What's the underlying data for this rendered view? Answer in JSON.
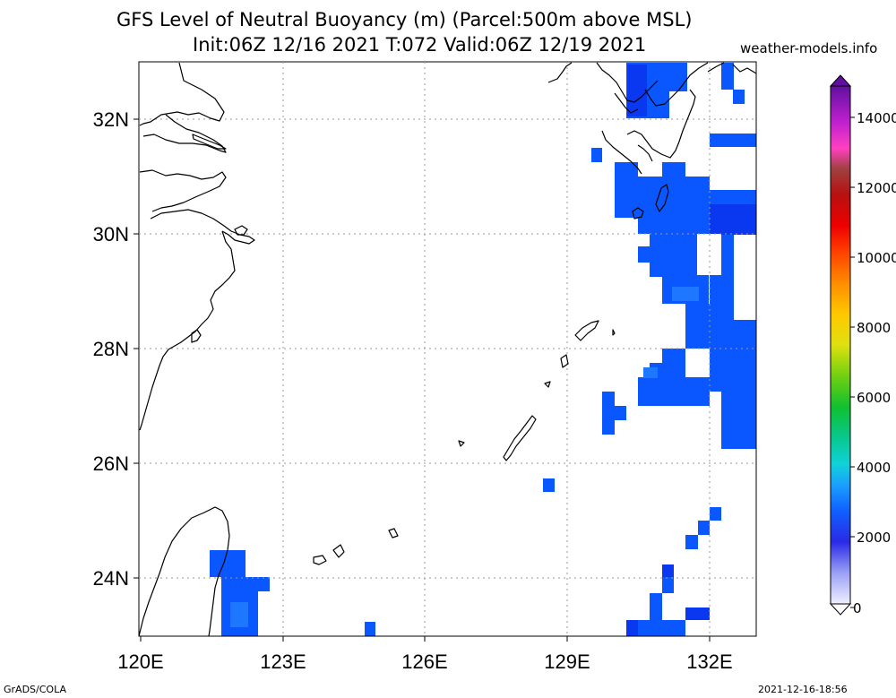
{
  "title_line1": "GFS Level of Neutral Buoyancy (m) (Parcel:500m above MSL)",
  "title_line2": "Init:06Z 12/16 2021 T:072 Valid:06Z 12/19 2021",
  "website": "weather-models.info",
  "footer_left": "GrADS/COLA",
  "footer_right": "2021-12-16-18:56",
  "map": {
    "lon_range": [
      120,
      133
    ],
    "lat_range": [
      23,
      33
    ],
    "x_ticks": [
      "120E",
      "123E",
      "126E",
      "129E",
      "132E"
    ],
    "y_ticks": [
      "24N",
      "26N",
      "28N",
      "30N",
      "32N"
    ],
    "grid": true
  },
  "colorbar": {
    "range": [
      0,
      15000
    ],
    "labels": [
      "0",
      "2000",
      "4000",
      "6000",
      "8000",
      "10000",
      "12000",
      "14000"
    ]
  },
  "colors": {
    "shade_primary": "#0a57ff",
    "shade_dark": "#0a37f0",
    "shade_light": "#1e78ff"
  }
}
